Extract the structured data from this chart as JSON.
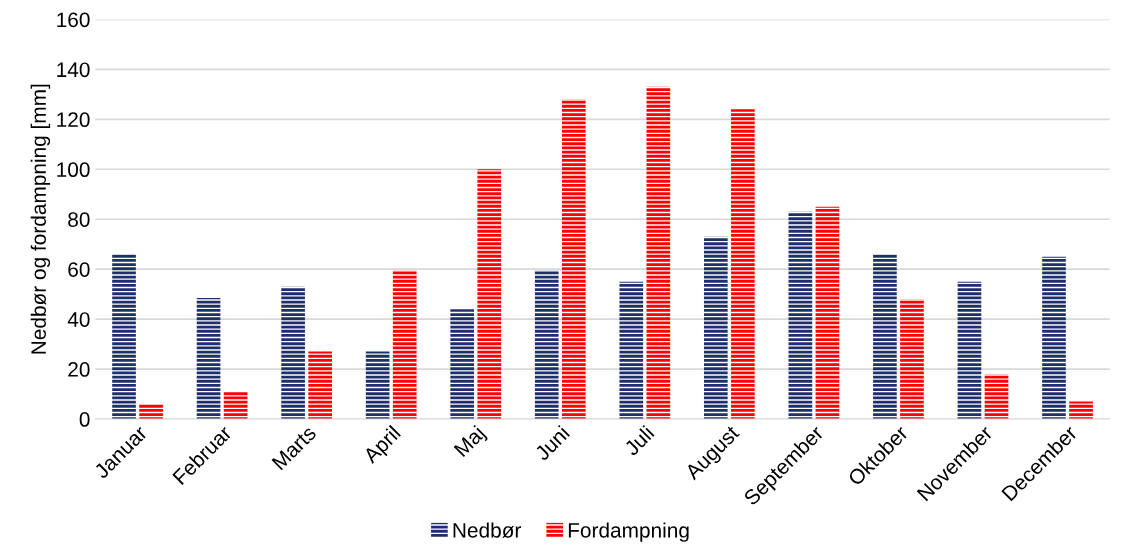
{
  "chart_data": {
    "type": "bar",
    "ylabel": "Nedbør og fordampning [mm]",
    "categories": [
      "Januar",
      "Februar",
      "Marts",
      "April",
      "Maj",
      "Juni",
      "Juli",
      "August",
      "September",
      "Oktober",
      "November",
      "December"
    ],
    "series": [
      {
        "name": "Nedbør",
        "color": "#1f2f6b",
        "values": [
          66,
          48.5,
          53,
          27,
          44,
          59.5,
          55,
          73,
          83,
          66,
          55,
          65
        ]
      },
      {
        "name": "Fordampning",
        "color": "#ff0000",
        "values": [
          6,
          11,
          27,
          59.5,
          100,
          128,
          133,
          124,
          85,
          48,
          18,
          7
        ]
      }
    ],
    "ylim": [
      0,
      160
    ],
    "yticks": [
      0,
      20,
      40,
      60,
      80,
      100,
      120,
      140,
      160
    ],
    "grid": "y",
    "legend": "bottom"
  }
}
